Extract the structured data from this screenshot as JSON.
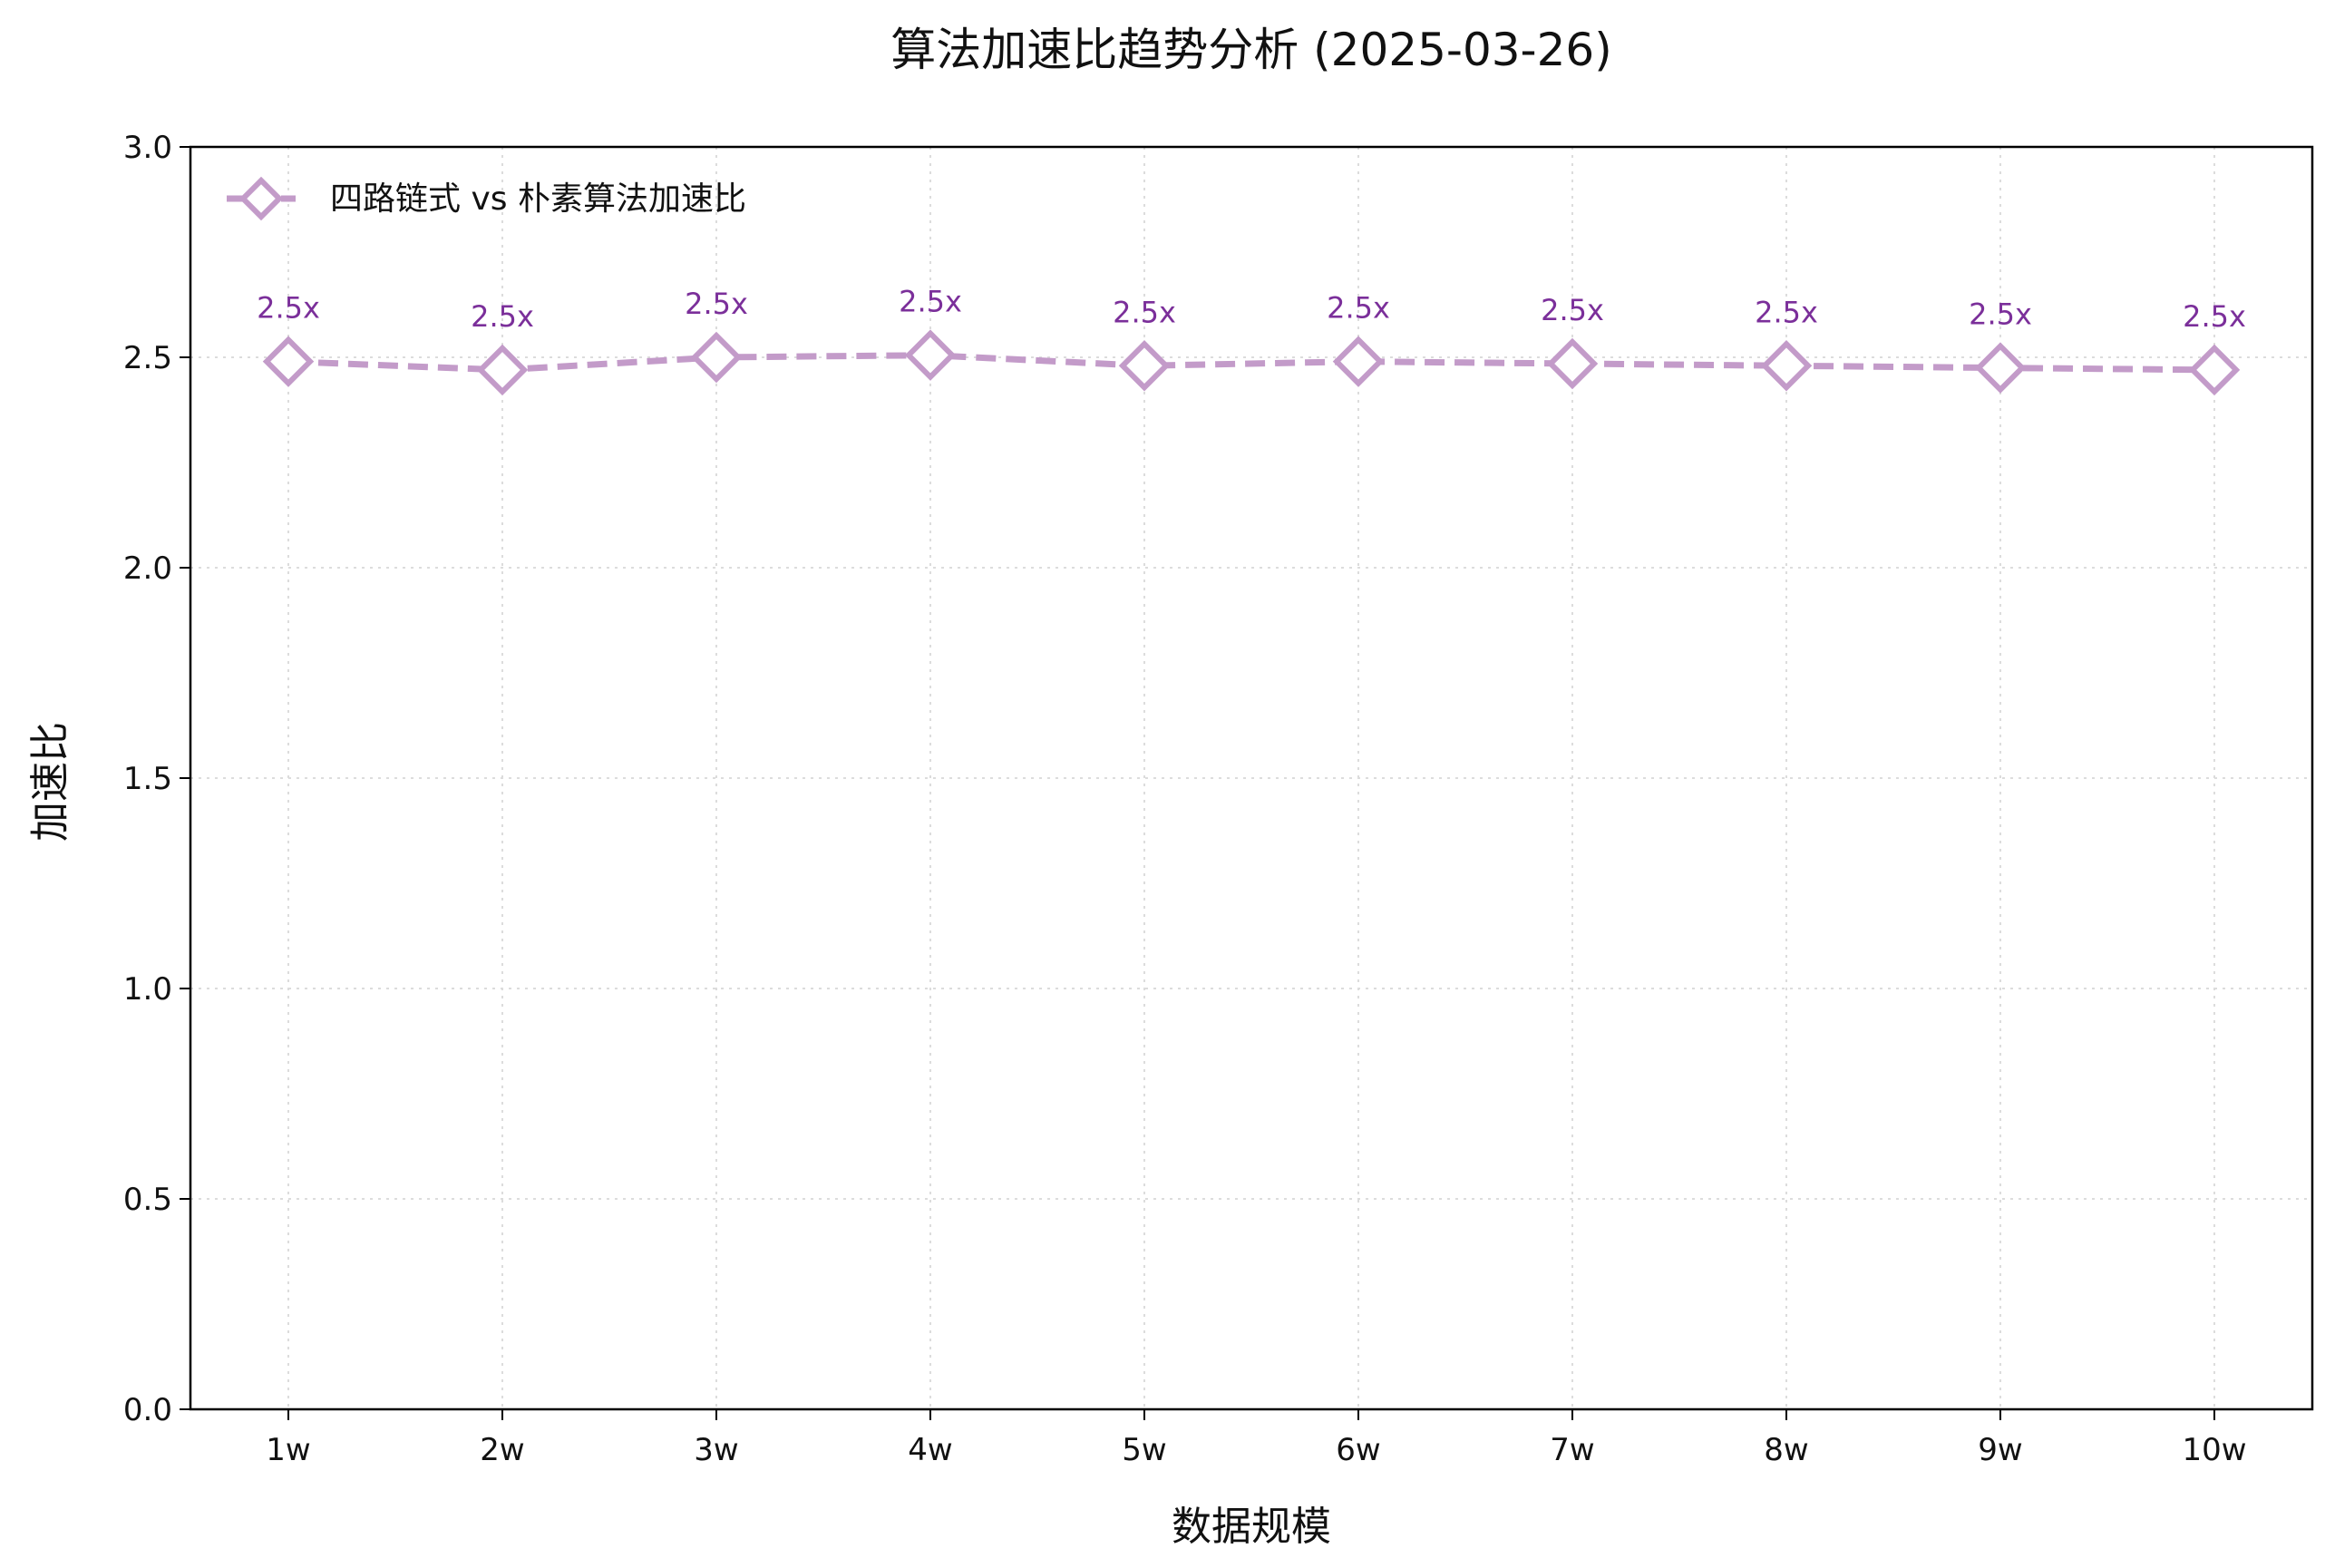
{
  "chart_data": {
    "type": "line",
    "title": "算法加速比趋势分析 (2025-03-26)",
    "xlabel": "数据规模",
    "ylabel": "加速比",
    "categories": [
      "1w",
      "2w",
      "3w",
      "4w",
      "5w",
      "6w",
      "7w",
      "8w",
      "9w",
      "10w"
    ],
    "ylim": [
      0,
      3.0
    ],
    "yticks": [
      "0.0",
      "0.5",
      "1.0",
      "1.5",
      "2.0",
      "2.5",
      "3.0"
    ],
    "grid": true,
    "legend_position": "top-left",
    "series": [
      {
        "name": "四路链式 vs 朴素算法加速比",
        "values": [
          2.49,
          2.47,
          2.5,
          2.505,
          2.48,
          2.49,
          2.485,
          2.48,
          2.475,
          2.47
        ],
        "data_labels": [
          "2.5x",
          "2.5x",
          "2.5x",
          "2.5x",
          "2.5x",
          "2.5x",
          "2.5x",
          "2.5x",
          "2.5x",
          "2.5x"
        ],
        "color": "#c39bc9",
        "label_color": "#7b2f9a",
        "marker": "diamond",
        "line_style": "dashed"
      }
    ]
  }
}
